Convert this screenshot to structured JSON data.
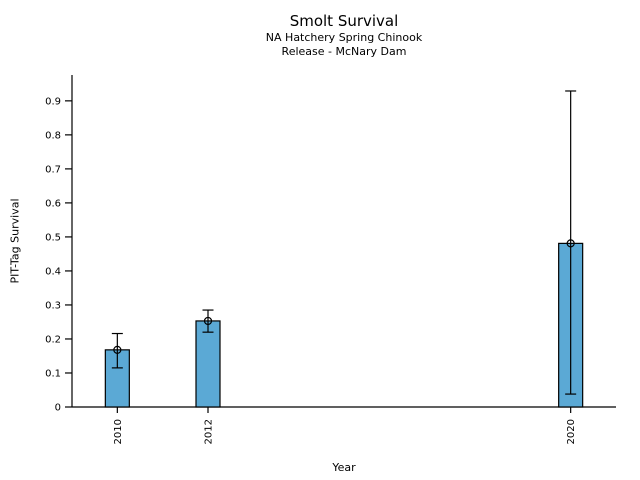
{
  "figure": {
    "background": "#ffffff",
    "text_color": "#000000"
  },
  "chart_data": {
    "type": "bar",
    "title": "Smolt Survival",
    "subtitle_lines": [
      "NA Hatchery Spring Chinook",
      "Release - McNary Dam"
    ],
    "xlabel": "Year",
    "ylabel": "PIT-Tag Survival",
    "categories": [
      "2010",
      "2012",
      "2020"
    ],
    "x_values": [
      2010,
      2012,
      2020
    ],
    "values": [
      0.168,
      0.253,
      0.481
    ],
    "error_low": [
      0.115,
      0.22,
      0.038
    ],
    "error_high": [
      0.216,
      0.285,
      0.929
    ],
    "marker": "open-circle",
    "xlim": [
      2009,
      2021
    ],
    "ylim": [
      0,
      0.976
    ],
    "yticks": [
      0,
      0.1,
      0.2,
      0.3,
      0.4,
      0.5,
      0.6,
      0.7,
      0.8,
      0.9
    ],
    "ytick_labels": [
      "0",
      "0.1",
      "0.2",
      "0.3",
      "0.4",
      "0.5",
      "0.6",
      "0.7",
      "0.8",
      "0.9"
    ],
    "grid": false,
    "legend": false,
    "bar_color": "#5BA9D5",
    "bar_edge_color": "#000000",
    "error_color": "#000000",
    "axis_color": "#000000"
  }
}
